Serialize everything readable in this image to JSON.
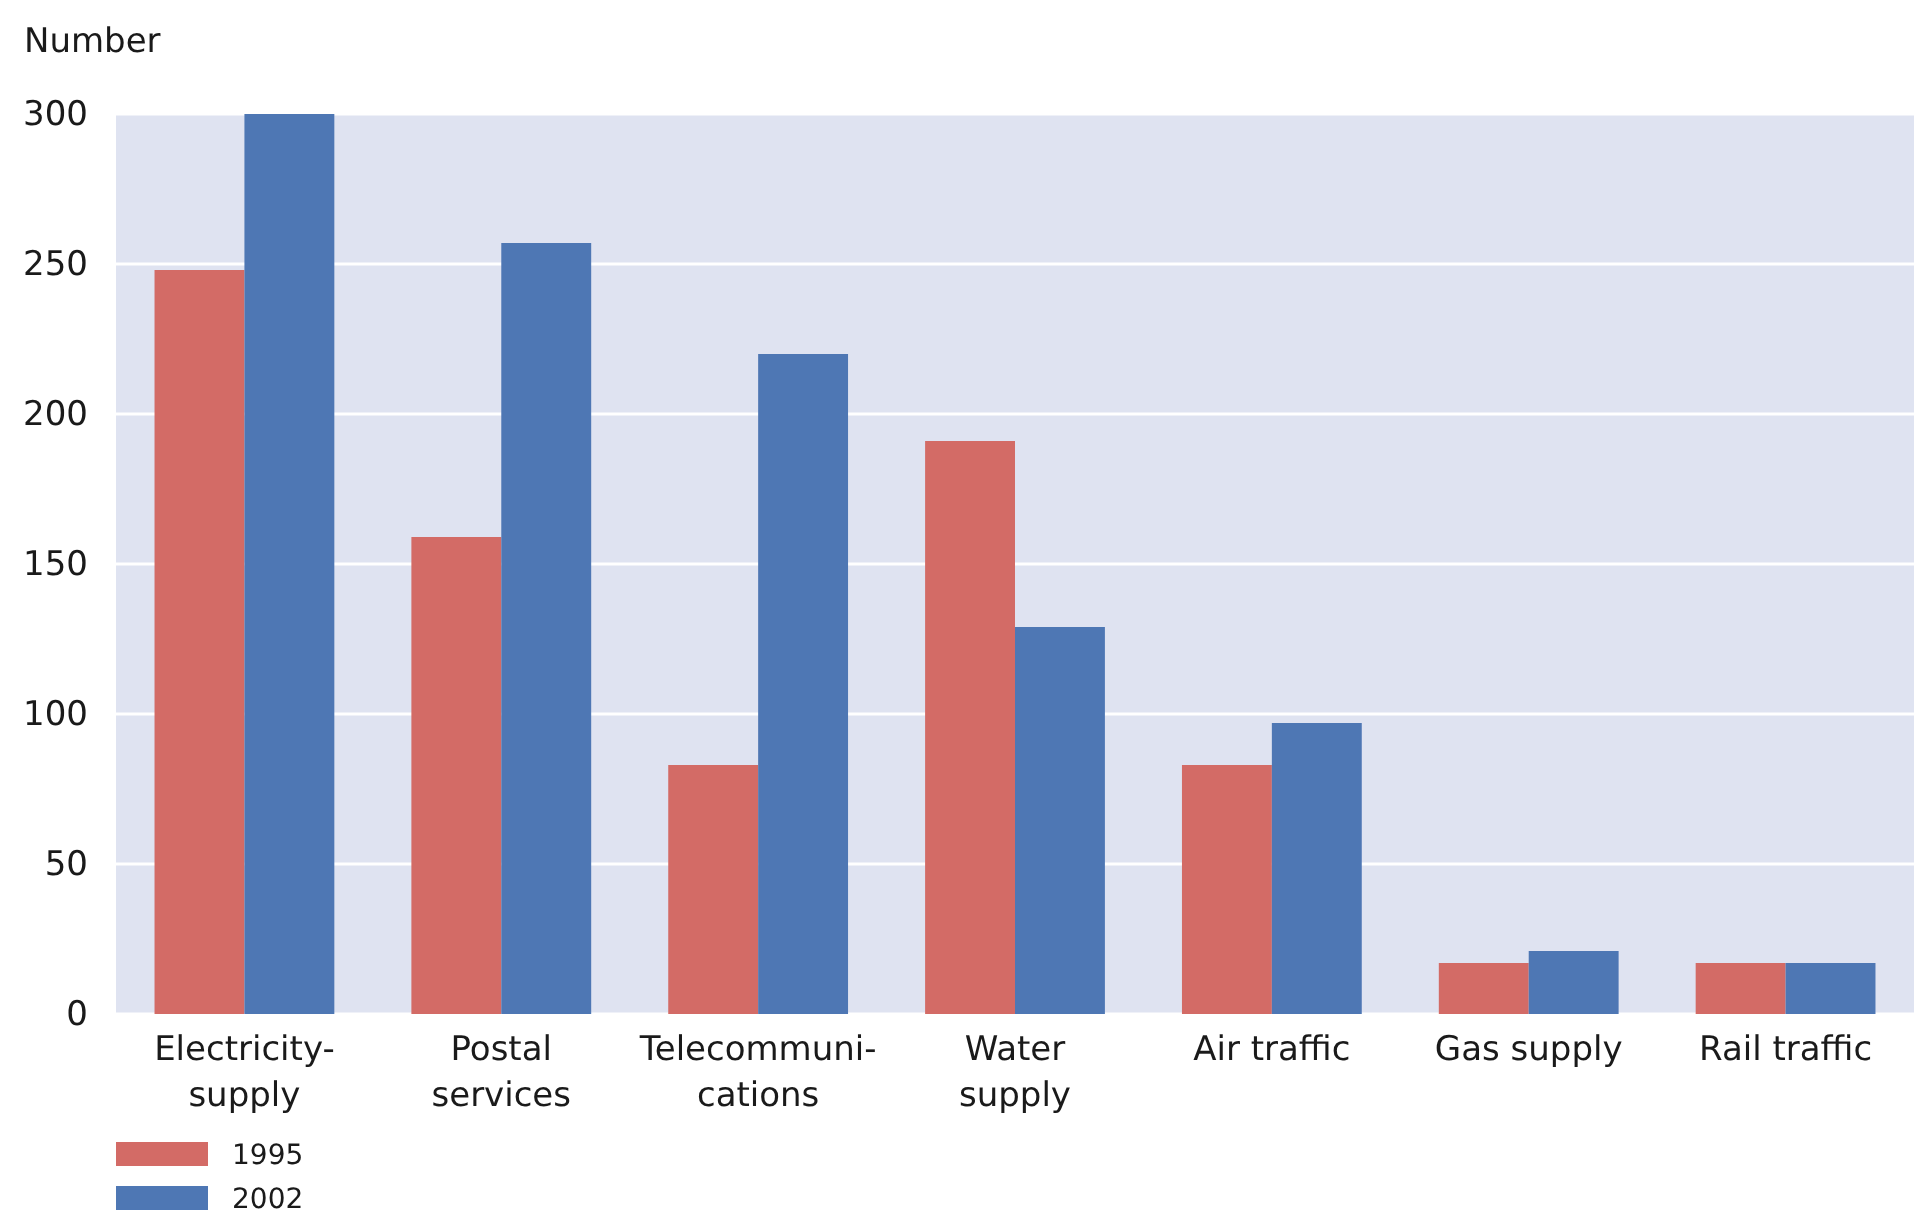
{
  "chart_data": {
    "type": "bar",
    "ylabel": "Number",
    "categories": [
      "Electricity-\nsupply",
      "Postal\nservices",
      "Telecommuni-\ncations",
      "Water\nsupply",
      "Air traffic",
      "Gas supply",
      "Rail traffic"
    ],
    "series": [
      {
        "name": "1995",
        "color": "#d36b66",
        "values": [
          248,
          159,
          83,
          191,
          83,
          17,
          17
        ]
      },
      {
        "name": "2002",
        "color": "#4e77b4",
        "values": [
          300,
          257,
          220,
          129,
          97,
          21,
          17
        ]
      }
    ],
    "ylim": [
      0,
      300
    ],
    "yticks": [
      0,
      50,
      100,
      150,
      200,
      250,
      300
    ],
    "grid": "y",
    "legend": "bottom left"
  }
}
